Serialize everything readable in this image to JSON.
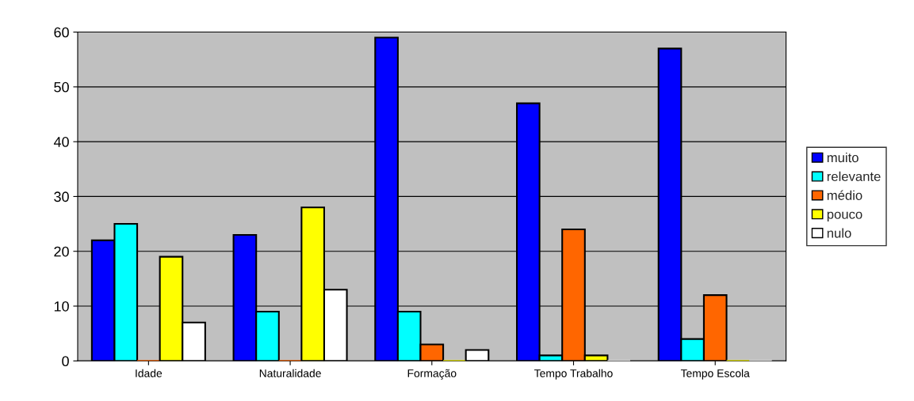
{
  "chart_data": {
    "type": "bar",
    "categories": [
      "Idade",
      "Naturalidade",
      "Formação",
      "Tempo Trabalho",
      "Tempo Escola"
    ],
    "series": [
      {
        "name": "muito",
        "color": "#0000ff",
        "values": [
          22,
          23,
          59,
          47,
          57
        ]
      },
      {
        "name": "relevante",
        "color": "#00ffff",
        "values": [
          25,
          9,
          9,
          1,
          4
        ]
      },
      {
        "name": "médio",
        "color": "#ff6600",
        "values": [
          0,
          0,
          3,
          24,
          12
        ]
      },
      {
        "name": "pouco",
        "color": "#ffff00",
        "values": [
          19,
          28,
          0,
          1,
          0
        ]
      },
      {
        "name": "nulo",
        "color": "#ffffff",
        "values": [
          7,
          13,
          2,
          0,
          0
        ]
      }
    ],
    "ylim": [
      0,
      60
    ],
    "yticks": [
      0,
      10,
      20,
      30,
      40,
      50,
      60
    ],
    "grid": "y",
    "legend": "right"
  }
}
